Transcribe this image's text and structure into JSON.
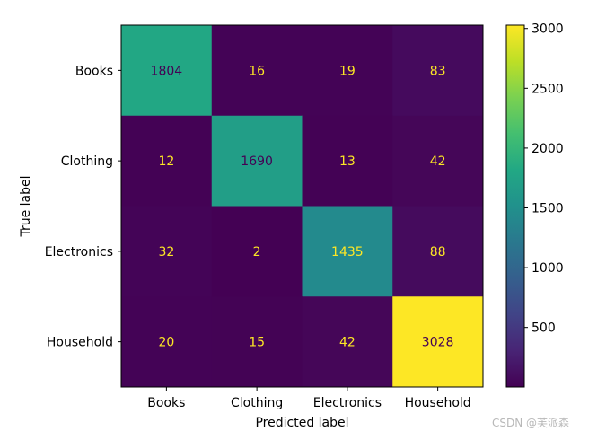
{
  "chart_data": {
    "type": "heatmap",
    "xlabel": "Predicted label",
    "ylabel": "True label",
    "x_categories": [
      "Books",
      "Clothing",
      "Electronics",
      "Household"
    ],
    "y_categories": [
      "Books",
      "Clothing",
      "Electronics",
      "Household"
    ],
    "values": [
      [
        1804,
        16,
        19,
        83
      ],
      [
        12,
        1690,
        13,
        42
      ],
      [
        32,
        2,
        1435,
        88
      ],
      [
        20,
        15,
        42,
        3028
      ]
    ],
    "colormap": "viridis",
    "vmin": 2,
    "vmax": 3028,
    "colorbar_ticks": [
      500,
      1000,
      1500,
      2000,
      2500,
      3000
    ],
    "text_color_dark": "#440154",
    "text_color_light": "#fde725"
  },
  "watermark": "CSDN @芙派森"
}
